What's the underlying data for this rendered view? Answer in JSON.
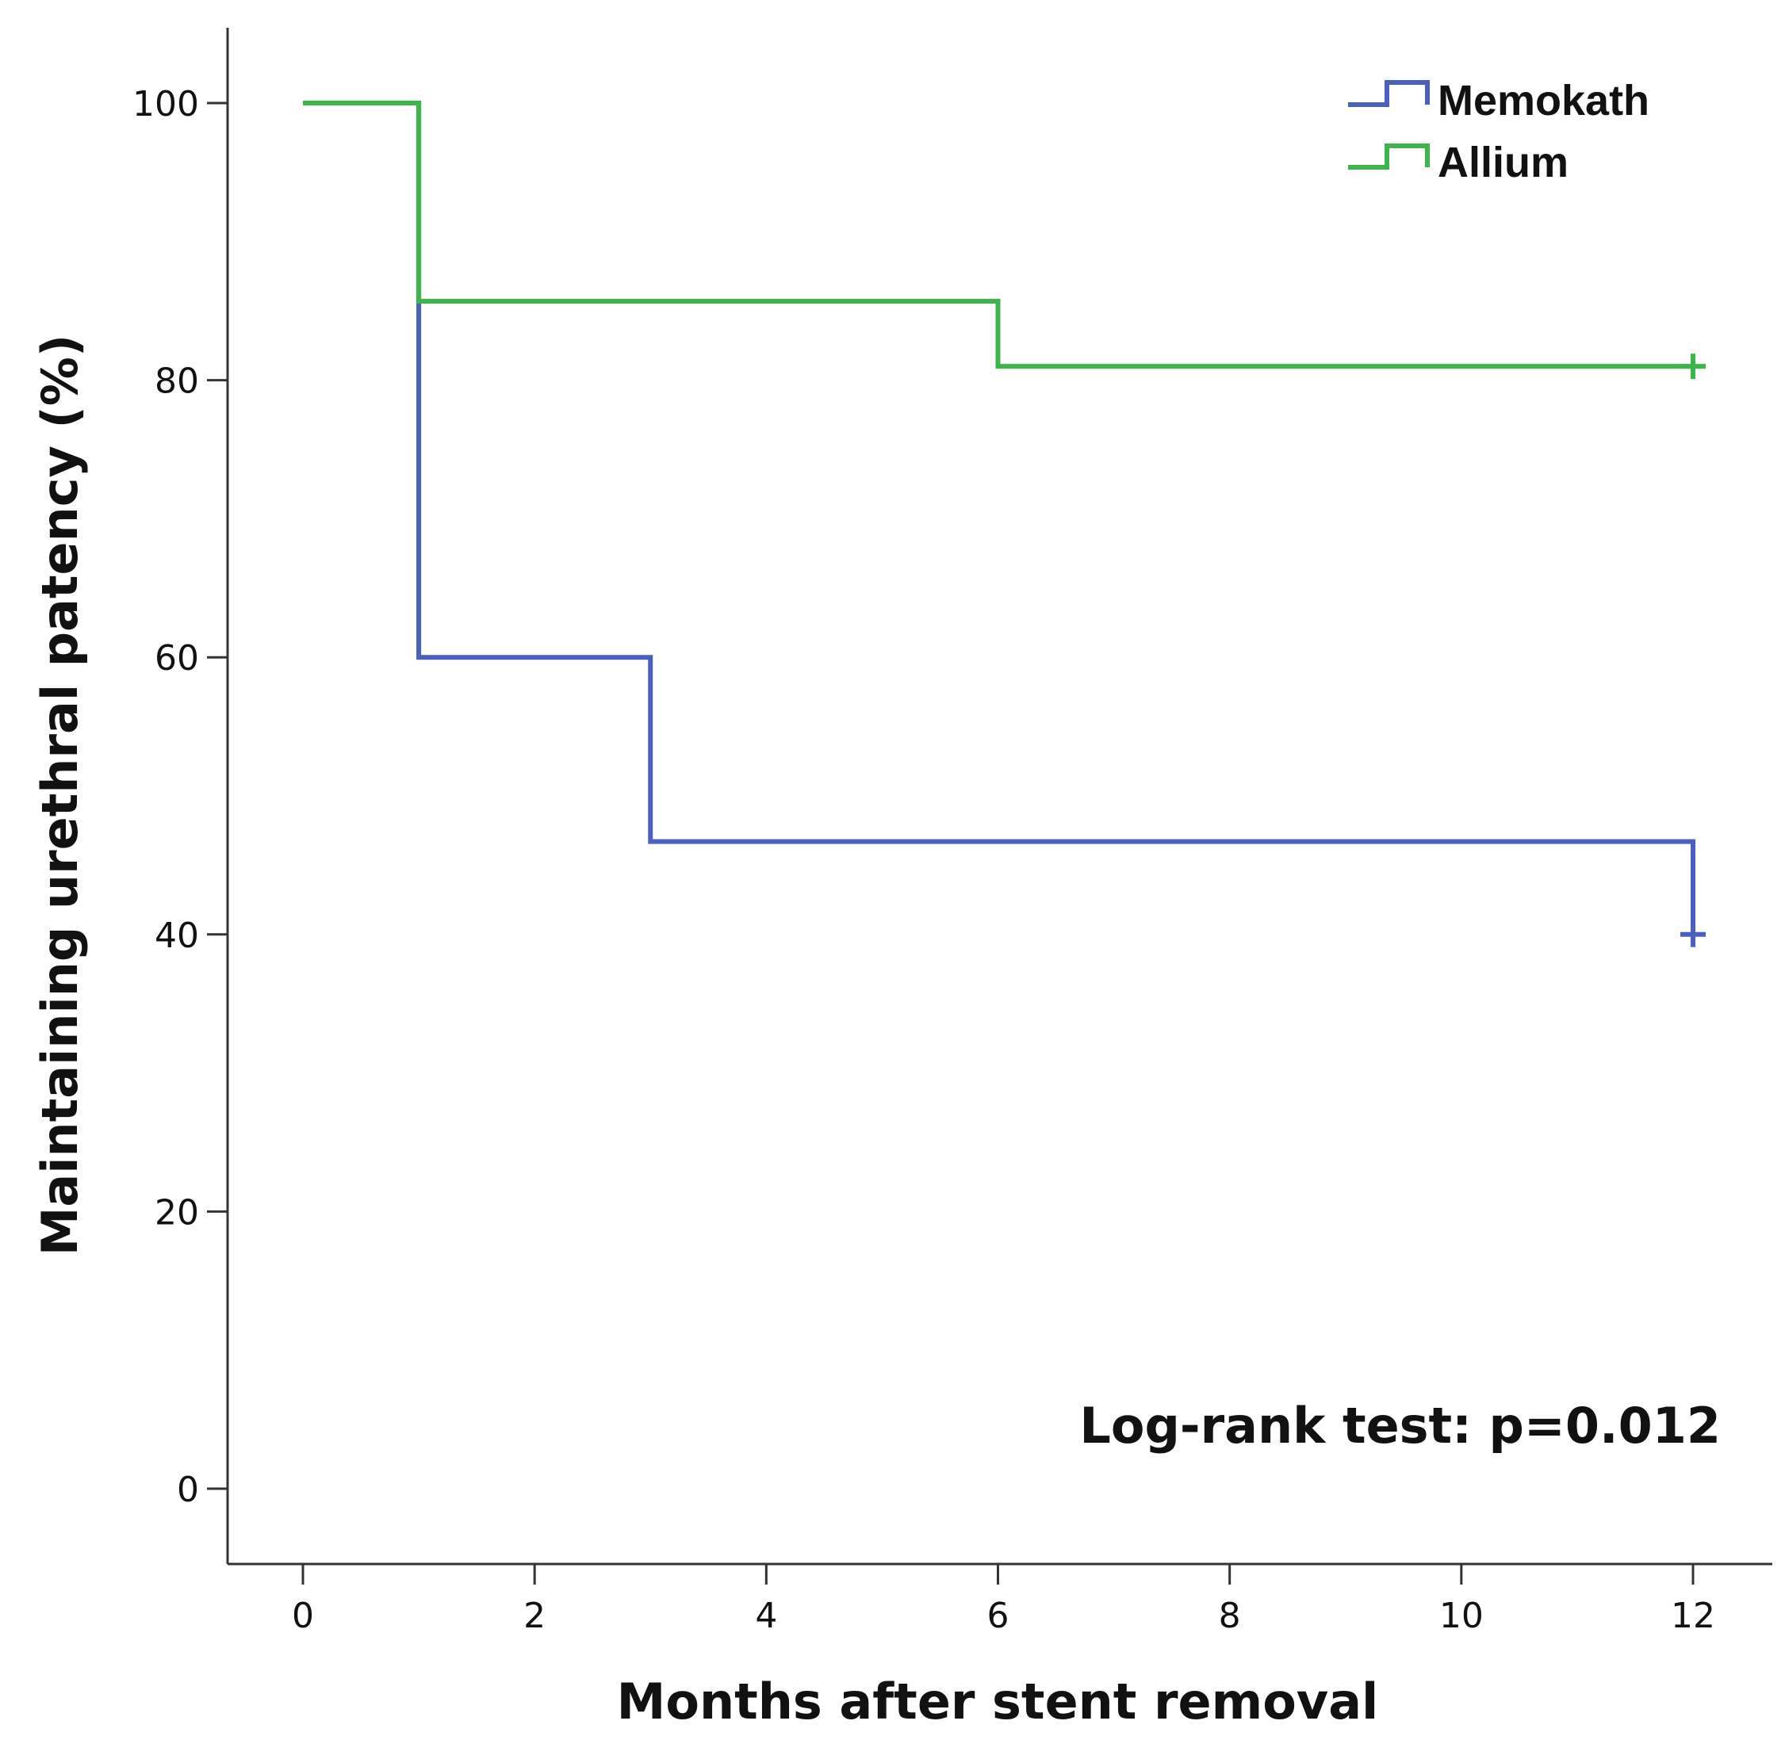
{
  "chart_data": {
    "type": "line",
    "subtype": "kaplan-meier-step",
    "title": "",
    "xlabel": "Months after stent removal",
    "ylabel": "Maintaining urethral patency (%)",
    "xlim": [
      -0.65,
      12.6
    ],
    "ylim": [
      -5.5,
      105.5
    ],
    "xticks": [
      0,
      2,
      4,
      6,
      8,
      10,
      12
    ],
    "yticks": [
      0,
      20,
      40,
      60,
      80,
      100
    ],
    "xtick_labels": [
      "0",
      "2",
      "4",
      "6",
      "8",
      "10",
      "12"
    ],
    "ytick_labels": [
      "0",
      "20",
      "40",
      "60",
      "80",
      "100"
    ],
    "grid": false,
    "legend_position": "top-right",
    "series": [
      {
        "name": "Memokath",
        "color": "#4a5fbf",
        "steps": [
          {
            "x": 0,
            "y": 100
          },
          {
            "x": 1,
            "y": 60
          },
          {
            "x": 3,
            "y": 46.7
          },
          {
            "x": 12,
            "y": 40
          }
        ],
        "censored": [
          {
            "x": 12,
            "y": 40
          }
        ]
      },
      {
        "name": "Allium",
        "color": "#3cb54a",
        "steps": [
          {
            "x": 0,
            "y": 100
          },
          {
            "x": 1,
            "y": 85.7
          },
          {
            "x": 6,
            "y": 81
          }
        ],
        "end_x": 12,
        "censored": [
          {
            "x": 12,
            "y": 81
          }
        ]
      }
    ],
    "annotations": [
      {
        "text": "Log-rank test: p=0.012",
        "position": "bottom-right"
      }
    ]
  }
}
